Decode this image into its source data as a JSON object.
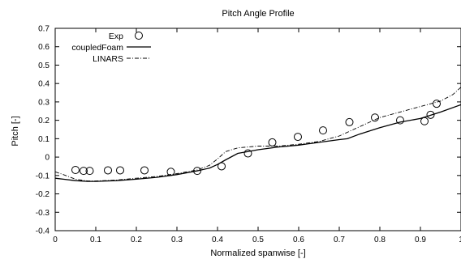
{
  "chart_data": {
    "type": "line",
    "title": "Pitch Angle Profile",
    "xlabel": "Normalized spanwise [-]",
    "ylabel": "Pitch [-]",
    "xlim": [
      0,
      1
    ],
    "ylim": [
      -0.4,
      0.7
    ],
    "xticks": [
      "0",
      "0.1",
      "0.2",
      "0.3",
      "0.4",
      "0.5",
      "0.6",
      "0.7",
      "0.8",
      "0.9",
      "1"
    ],
    "yticks": [
      "-0.4",
      "-0.3",
      "-0.2",
      "-0.1",
      "0",
      "0.1",
      "0.2",
      "0.3",
      "0.4",
      "0.5",
      "0.6",
      "0.7"
    ],
    "legend_position": "top-left",
    "grid": false,
    "series": [
      {
        "name": "Exp",
        "style": "markers",
        "marker": "circle",
        "x": [
          0.05,
          0.07,
          0.085,
          0.13,
          0.16,
          0.22,
          0.285,
          0.35,
          0.41,
          0.475,
          0.535,
          0.598,
          0.66,
          0.725,
          0.788,
          0.85,
          0.91,
          0.925,
          0.94
        ],
        "y": [
          -0.07,
          -0.075,
          -0.075,
          -0.072,
          -0.072,
          -0.072,
          -0.08,
          -0.075,
          -0.05,
          0.02,
          0.08,
          0.11,
          0.145,
          0.19,
          0.215,
          0.2,
          0.195,
          0.23,
          0.29
        ]
      },
      {
        "name": "coupledFoam",
        "style": "solid",
        "x": [
          0,
          0.02,
          0.05,
          0.08,
          0.1,
          0.15,
          0.2,
          0.25,
          0.3,
          0.35,
          0.38,
          0.4,
          0.42,
          0.45,
          0.5,
          0.55,
          0.6,
          0.65,
          0.7,
          0.72,
          0.75,
          0.8,
          0.85,
          0.9,
          0.95,
          1.0
        ],
        "y": [
          -0.115,
          -0.12,
          -0.128,
          -0.132,
          -0.132,
          -0.128,
          -0.12,
          -0.11,
          -0.095,
          -0.075,
          -0.06,
          -0.04,
          -0.015,
          0.02,
          0.04,
          0.055,
          0.065,
          0.08,
          0.095,
          0.1,
          0.125,
          0.16,
          0.19,
          0.21,
          0.245,
          0.285
        ]
      },
      {
        "name": "LINARS",
        "style": "dash-dot",
        "x": [
          0,
          0.02,
          0.05,
          0.08,
          0.1,
          0.15,
          0.2,
          0.25,
          0.3,
          0.35,
          0.38,
          0.4,
          0.42,
          0.45,
          0.5,
          0.55,
          0.6,
          0.65,
          0.7,
          0.75,
          0.8,
          0.85,
          0.9,
          0.95,
          0.98,
          1.0
        ],
        "y": [
          -0.08,
          -0.095,
          -0.12,
          -0.13,
          -0.13,
          -0.125,
          -0.115,
          -0.105,
          -0.09,
          -0.07,
          -0.045,
          -0.01,
          0.03,
          0.05,
          0.06,
          0.06,
          0.07,
          0.085,
          0.115,
          0.165,
          0.215,
          0.245,
          0.275,
          0.305,
          0.34,
          0.38
        ]
      }
    ]
  }
}
